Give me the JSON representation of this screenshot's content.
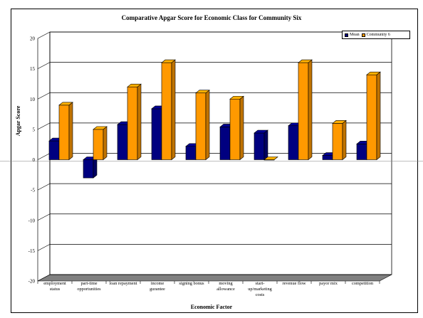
{
  "chart_data": {
    "type": "bar",
    "title": "Comparative Apgar Score for Economic Class for Community Six",
    "xlabel": "Economic Factor",
    "ylabel": "Apgar Score",
    "ylim": [
      -20,
      20
    ],
    "yticks": [
      -20,
      -15,
      -10,
      -5,
      0,
      5,
      10,
      15,
      20
    ],
    "grid": true,
    "legend_position": "top-right",
    "categories": [
      "employment status",
      "part-time opportunities",
      "loan repayment",
      "income gurantee",
      "signing bonus",
      "moving allowance",
      "start-up/marketing costs",
      "revenue flow",
      "payor mix",
      "competition"
    ],
    "series": [
      {
        "name": "Mean",
        "color": "#000080",
        "values": [
          3.1,
          -3.0,
          5.8,
          8.4,
          2.2,
          5.4,
          4.4,
          5.6,
          0.7,
          2.6
        ]
      },
      {
        "name": "Community 6",
        "color": "#ff9900",
        "values": [
          9,
          5,
          12,
          16,
          11,
          10,
          0,
          16,
          6,
          14
        ]
      }
    ]
  }
}
